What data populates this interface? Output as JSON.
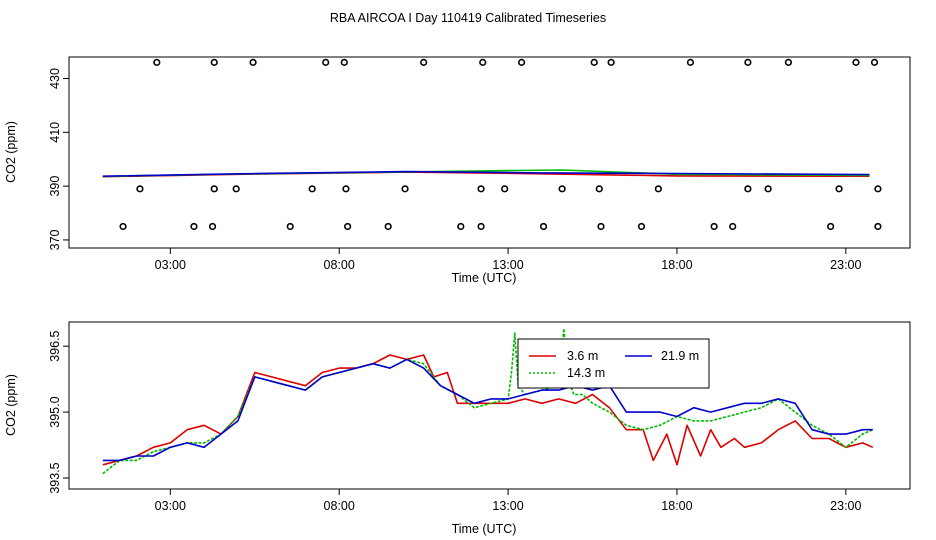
{
  "title": "RBA AIRCOA I  Day 110419  Calibrated Timeseries",
  "colors": {
    "red": "#dd0000",
    "green": "#00bb00",
    "blue": "#0000cc",
    "axis": "#000000"
  },
  "chart_data": [
    {
      "type": "scatter",
      "panel": "top",
      "xlabel": "Time (UTC)",
      "ylabel": "CO2 (ppm)",
      "xlim": [
        0,
        24.9
      ],
      "ylim": [
        367,
        438
      ],
      "xticks": [
        3,
        8,
        13,
        18,
        23
      ],
      "xtick_labels": [
        "03:00",
        "08:00",
        "13:00",
        "18:00",
        "23:00"
      ],
      "yticks": [
        370,
        390,
        410,
        430
      ],
      "ytick_labels": [
        "370",
        "390",
        "410",
        "430"
      ],
      "markers": [
        {
          "name": "circles-high",
          "y": 436,
          "x": [
            2.6,
            4.3,
            5.45,
            7.6,
            8.15,
            10.5,
            12.25,
            13.4,
            15.55,
            16.05,
            18.4,
            20.1,
            21.3,
            23.3,
            23.85
          ]
        },
        {
          "name": "circles-mid",
          "y": 389,
          "x": [
            2.1,
            4.3,
            4.95,
            7.2,
            8.2,
            9.95,
            12.2,
            12.9,
            14.6,
            15.7,
            17.45,
            20.1,
            20.7,
            22.8,
            23.95
          ]
        },
        {
          "name": "circles-low",
          "y": 375,
          "x": [
            1.6,
            3.7,
            4.25,
            6.55,
            8.25,
            9.45,
            11.6,
            12.2,
            14.05,
            15.75,
            16.95,
            19.1,
            19.65,
            22.55,
            23.95
          ]
        }
      ],
      "series": [
        {
          "name": "3.6 m",
          "color": "#dd0000",
          "x": [
            1,
            5,
            10,
            14,
            18,
            23.7
          ],
          "y": [
            393.5,
            394.4,
            395.2,
            394.6,
            393.8,
            393.7
          ]
        },
        {
          "name": "14.3 m",
          "color": "#00bb00",
          "x": [
            1,
            5,
            10,
            13.2,
            14.6,
            18,
            23.7
          ],
          "y": [
            393.6,
            394.5,
            395.3,
            395.8,
            396.0,
            394.4,
            394.0
          ]
        },
        {
          "name": "21.9 m",
          "color": "#0000cc",
          "x": [
            1,
            5,
            10,
            14,
            18,
            23.7
          ],
          "y": [
            393.7,
            394.6,
            395.4,
            394.9,
            394.7,
            394.3
          ]
        }
      ]
    },
    {
      "type": "line",
      "panel": "bottom",
      "xlabel": "Time (UTC)",
      "ylabel": "CO2 (ppm)",
      "xlim": [
        0,
        24.9
      ],
      "ylim": [
        393.25,
        397.05
      ],
      "xticks": [
        3,
        8,
        13,
        18,
        23
      ],
      "xtick_labels": [
        "03:00",
        "08:00",
        "13:00",
        "18:00",
        "23:00"
      ],
      "yticks": [
        393.5,
        395.0,
        396.5
      ],
      "ytick_labels": [
        "393.5",
        "395.0",
        "396.5"
      ],
      "legend": {
        "position": "top-center",
        "entries": [
          "3.6 m",
          "21.9 m",
          "14.3 m"
        ]
      },
      "series": [
        {
          "name": "3.6 m",
          "color": "#dd0000",
          "x": [
            1.0,
            1.5,
            2.0,
            2.5,
            3.0,
            3.5,
            4.0,
            4.5,
            5.0,
            5.5,
            6.0,
            6.5,
            7.0,
            7.5,
            8.0,
            8.5,
            9.0,
            9.5,
            10.0,
            10.5,
            10.8,
            11.2,
            11.5,
            12.0,
            12.5,
            13.0,
            13.5,
            14.0,
            14.5,
            15.0,
            15.5,
            16.0,
            16.5,
            17.0,
            17.3,
            17.7,
            18.0,
            18.3,
            18.7,
            19.0,
            19.3,
            19.7,
            20.0,
            20.5,
            21.0,
            21.5,
            22.0,
            22.5,
            23.0,
            23.5,
            23.8
          ],
          "y": [
            393.8,
            393.9,
            394.0,
            394.2,
            394.3,
            394.6,
            394.7,
            394.5,
            394.9,
            395.9,
            395.8,
            395.7,
            395.6,
            395.9,
            396.0,
            396.0,
            396.1,
            396.3,
            396.2,
            396.3,
            395.8,
            395.9,
            395.2,
            395.2,
            395.2,
            395.2,
            395.3,
            395.2,
            395.3,
            395.2,
            395.4,
            395.1,
            394.6,
            394.6,
            393.9,
            394.5,
            393.8,
            394.7,
            394.0,
            394.6,
            394.2,
            394.4,
            394.2,
            394.3,
            394.6,
            394.8,
            394.4,
            394.4,
            394.2,
            394.3,
            394.2
          ]
        },
        {
          "name": "14.3 m",
          "color": "#00bb00",
          "x": [
            1.0,
            1.5,
            2.0,
            2.5,
            3.0,
            3.5,
            4.0,
            4.5,
            5.0,
            5.5,
            6.0,
            6.5,
            7.0,
            7.5,
            8.0,
            8.5,
            9.0,
            9.5,
            10.0,
            10.5,
            11.0,
            11.5,
            12.0,
            12.5,
            13.0,
            13.1,
            13.2,
            13.3,
            13.5,
            14.0,
            14.5,
            14.65,
            14.8,
            14.95,
            15.2,
            15.5,
            16.0,
            16.5,
            17.0,
            17.5,
            18.0,
            18.5,
            19.0,
            19.5,
            20.0,
            20.5,
            21.0,
            21.5,
            22.0,
            22.5,
            23.0,
            23.5,
            23.8
          ],
          "y": [
            393.6,
            393.9,
            393.9,
            394.1,
            394.2,
            394.3,
            394.3,
            394.5,
            394.9,
            395.8,
            395.7,
            395.6,
            395.5,
            395.8,
            395.9,
            396.0,
            396.1,
            396.0,
            396.2,
            396.1,
            395.6,
            395.4,
            395.1,
            395.2,
            395.3,
            395.9,
            396.8,
            395.6,
            395.4,
            395.5,
            395.6,
            396.9,
            395.7,
            395.4,
            395.4,
            395.2,
            395.0,
            394.7,
            394.6,
            394.7,
            394.9,
            394.8,
            394.8,
            394.9,
            395.0,
            395.1,
            395.3,
            395.0,
            394.7,
            394.5,
            394.2,
            394.5,
            394.6
          ]
        },
        {
          "name": "21.9 m",
          "color": "#0000cc",
          "x": [
            1.0,
            1.5,
            2.0,
            2.5,
            3.0,
            3.5,
            4.0,
            4.5,
            5.0,
            5.5,
            6.0,
            6.5,
            7.0,
            7.5,
            8.0,
            8.5,
            9.0,
            9.5,
            10.0,
            10.5,
            11.0,
            11.5,
            12.0,
            12.5,
            13.0,
            13.5,
            14.0,
            14.5,
            15.0,
            15.5,
            16.0,
            16.5,
            17.0,
            17.5,
            18.0,
            18.5,
            19.0,
            19.5,
            20.0,
            20.5,
            21.0,
            21.5,
            22.0,
            22.5,
            23.0,
            23.5,
            23.8
          ],
          "y": [
            393.9,
            393.9,
            394.0,
            394.0,
            394.2,
            394.3,
            394.2,
            394.5,
            394.8,
            395.8,
            395.7,
            395.6,
            395.5,
            395.8,
            395.9,
            396.0,
            396.1,
            396.0,
            396.2,
            396.0,
            395.6,
            395.4,
            395.2,
            395.3,
            395.3,
            395.4,
            395.5,
            395.5,
            395.6,
            395.5,
            395.6,
            395.0,
            395.0,
            395.0,
            394.9,
            395.1,
            395.0,
            395.1,
            395.2,
            395.2,
            395.3,
            395.2,
            394.6,
            394.5,
            394.5,
            394.6,
            394.6
          ]
        }
      ]
    }
  ]
}
